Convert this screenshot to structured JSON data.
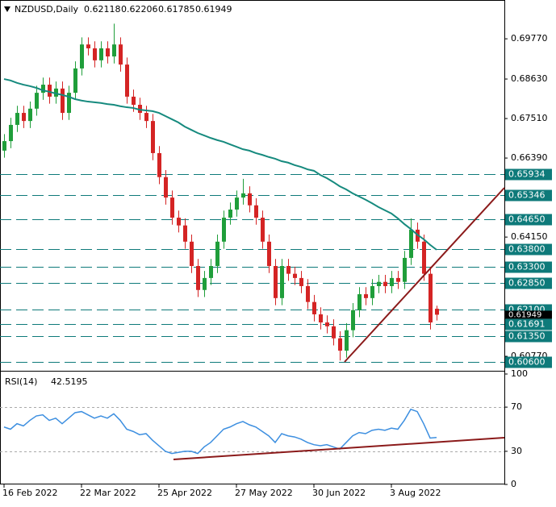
{
  "header": {
    "symbol": "NZDUSD,Daily"
  },
  "chart_data": [
    {
      "type": "candlestick",
      "categories": [
        "16 Feb 2022",
        null,
        null,
        null,
        null,
        null,
        null,
        null,
        null,
        null,
        null,
        null,
        "22 Mar 2022",
        null,
        null,
        null,
        null,
        null,
        null,
        null,
        null,
        null,
        null,
        null,
        "25 Apr 2022",
        null,
        null,
        null,
        null,
        null,
        null,
        null,
        null,
        null,
        null,
        null,
        "27 May 2022",
        null,
        null,
        null,
        null,
        null,
        null,
        null,
        null,
        null,
        null,
        null,
        "30 Jun 2022",
        null,
        null,
        null,
        null,
        null,
        null,
        null,
        null,
        null,
        null,
        null,
        "3 Aug 2022",
        null,
        null,
        null,
        null,
        null,
        null,
        null
      ],
      "open": [
        0.666,
        0.6687,
        0.6733,
        0.6767,
        0.6744,
        0.6779,
        0.6824,
        0.6847,
        0.6813,
        0.6836,
        0.6767,
        0.6824,
        0.6893,
        0.6961,
        0.695,
        0.6916,
        0.695,
        0.6927,
        0.6961,
        0.6904,
        0.6813,
        0.679,
        0.6767,
        0.6744,
        0.6653,
        0.6585,
        0.6527,
        0.647,
        0.6448,
        0.6402,
        0.6333,
        0.6265,
        0.6299,
        0.6333,
        0.6402,
        0.647,
        0.6493,
        0.6527,
        0.6539,
        0.6505,
        0.647,
        0.6402,
        0.6333,
        0.6242,
        0.6333,
        0.6311,
        0.6299,
        0.6276,
        0.6231,
        0.6196,
        0.6173,
        0.6162,
        0.6128,
        0.6093,
        0.6151,
        0.6208,
        0.6253,
        0.6242,
        0.6276,
        0.6288,
        0.6276,
        0.6299,
        0.6288,
        0.6356,
        0.6436,
        0.6402,
        0.6311,
        0.62118
      ],
      "high": [
        0.6707,
        0.6753,
        0.6787,
        0.6787,
        0.6799,
        0.6844,
        0.6867,
        0.6867,
        0.6856,
        0.6856,
        0.6844,
        0.6913,
        0.6981,
        0.6981,
        0.697,
        0.697,
        0.697,
        0.702,
        0.6981,
        0.6924,
        0.6833,
        0.681,
        0.6787,
        0.6764,
        0.6673,
        0.6605,
        0.6547,
        0.649,
        0.6468,
        0.6422,
        0.6353,
        0.6319,
        0.6353,
        0.6422,
        0.649,
        0.6513,
        0.6547,
        0.658,
        0.6559,
        0.6525,
        0.649,
        0.6422,
        0.6353,
        0.6353,
        0.6353,
        0.6331,
        0.6319,
        0.6296,
        0.6251,
        0.6216,
        0.6193,
        0.6182,
        0.6148,
        0.6171,
        0.6228,
        0.6273,
        0.6273,
        0.6296,
        0.6308,
        0.6308,
        0.6319,
        0.6319,
        0.6376,
        0.6468,
        0.6456,
        0.6422,
        0.6331,
        0.62206
      ],
      "low": [
        0.664,
        0.6667,
        0.6713,
        0.6724,
        0.6724,
        0.6759,
        0.6804,
        0.6793,
        0.6793,
        0.6747,
        0.6747,
        0.6804,
        0.6873,
        0.693,
        0.6896,
        0.6896,
        0.6907,
        0.6907,
        0.6884,
        0.6793,
        0.677,
        0.6747,
        0.6724,
        0.6633,
        0.6565,
        0.6507,
        0.645,
        0.6428,
        0.6382,
        0.6313,
        0.6245,
        0.6245,
        0.6279,
        0.6313,
        0.6382,
        0.645,
        0.6473,
        0.6507,
        0.6485,
        0.645,
        0.6382,
        0.6313,
        0.6222,
        0.6222,
        0.6291,
        0.6279,
        0.6256,
        0.6211,
        0.6176,
        0.6153,
        0.6142,
        0.6108,
        0.6065,
        0.6073,
        0.6131,
        0.6188,
        0.6222,
        0.6222,
        0.6256,
        0.6256,
        0.6256,
        0.6268,
        0.6268,
        0.6336,
        0.6382,
        0.6291,
        0.6153,
        0.61785
      ],
      "close": [
        0.6687,
        0.6733,
        0.6767,
        0.6744,
        0.6779,
        0.6824,
        0.6847,
        0.6813,
        0.6836,
        0.6767,
        0.6824,
        0.6893,
        0.6961,
        0.695,
        0.6916,
        0.695,
        0.6927,
        0.6961,
        0.6904,
        0.6813,
        0.679,
        0.6767,
        0.6744,
        0.6653,
        0.6585,
        0.6527,
        0.647,
        0.6448,
        0.6402,
        0.6333,
        0.6265,
        0.6299,
        0.6333,
        0.6402,
        0.647,
        0.6493,
        0.6527,
        0.6539,
        0.6505,
        0.647,
        0.6402,
        0.6333,
        0.6242,
        0.6333,
        0.6311,
        0.6299,
        0.6276,
        0.6231,
        0.6196,
        0.6173,
        0.6162,
        0.6128,
        0.6093,
        0.6151,
        0.6208,
        0.6253,
        0.6242,
        0.6276,
        0.6288,
        0.6276,
        0.6299,
        0.6288,
        0.6356,
        0.6436,
        0.6402,
        0.6311,
        0.6173,
        0.61949
      ],
      "up_color": "#1f9e3a",
      "down_color": "#d42424",
      "ma": {
        "color": "#168a7e",
        "values": [
          0.6863,
          0.6859,
          0.6852,
          0.6847,
          0.6843,
          0.6838,
          0.6831,
          0.6827,
          0.6822,
          0.6818,
          0.6813,
          0.6806,
          0.6802,
          0.6799,
          0.6797,
          0.6795,
          0.6792,
          0.679,
          0.6786,
          0.6783,
          0.6781,
          0.6776,
          0.6774,
          0.6772,
          0.6767,
          0.6758,
          0.6749,
          0.674,
          0.6728,
          0.6719,
          0.671,
          0.6703,
          0.6696,
          0.669,
          0.6685,
          0.6678,
          0.6671,
          0.6664,
          0.666,
          0.6653,
          0.6648,
          0.6642,
          0.6637,
          0.663,
          0.6626,
          0.6619,
          0.6614,
          0.6607,
          0.6603,
          0.6591,
          0.6582,
          0.6571,
          0.6559,
          0.655,
          0.6539,
          0.653,
          0.6521,
          0.6511,
          0.65,
          0.6491,
          0.6482,
          0.6468,
          0.6452,
          0.6438,
          0.6422,
          0.6409,
          0.6393,
          0.6379
        ]
      },
      "ylim": [
        0.6036,
        0.7087
      ],
      "yticks": [
        {
          "value": 0.6977,
          "label": "0.69770"
        },
        {
          "value": 0.6863,
          "label": "0.68630"
        },
        {
          "value": 0.6751,
          "label": "0.67510"
        },
        {
          "value": 0.6639,
          "label": "0.66390"
        },
        {
          "value": 0.6415,
          "label": "0.64150"
        },
        {
          "value": 0.6077,
          "label": "0.60770"
        }
      ],
      "levels": [
        0.65934,
        0.65346,
        {
          "value": 0.6465,
          "label": "0.64650"
        },
        {
          "value": 0.638,
          "label": "0.63800"
        },
        {
          "value": 0.633,
          "label": "0.63300"
        },
        {
          "value": 0.6285,
          "label": "0.62850"
        },
        {
          "value": 0.621,
          "label": "0.62100"
        },
        0.61691,
        {
          "value": 0.6135,
          "label": "0.61350"
        },
        {
          "value": 0.606,
          "label": "0.60600"
        }
      ],
      "level_color": "#0e7a7a"
    },
    {
      "type": "line",
      "name": "RSI(14)",
      "values": [
        52,
        50,
        55,
        53,
        58,
        62,
        63,
        58,
        60,
        55,
        60,
        65,
        66,
        63,
        60,
        62,
        60,
        64,
        58,
        50,
        48,
        45,
        46,
        40,
        35,
        30,
        28,
        29,
        30,
        30,
        28,
        34,
        38,
        44,
        50,
        52,
        55,
        57,
        54,
        52,
        48,
        44,
        38,
        46,
        44,
        43,
        41,
        38,
        36,
        35,
        36,
        34,
        32,
        38,
        44,
        47,
        46,
        49,
        50,
        49,
        51,
        50,
        58,
        68,
        66,
        55,
        42,
        42.5195
      ],
      "color": "#3d8fe0",
      "ylim": [
        0,
        100
      ],
      "yticks": [
        100,
        70,
        30,
        0
      ],
      "levels": [
        70,
        30
      ]
    }
  ]
}
